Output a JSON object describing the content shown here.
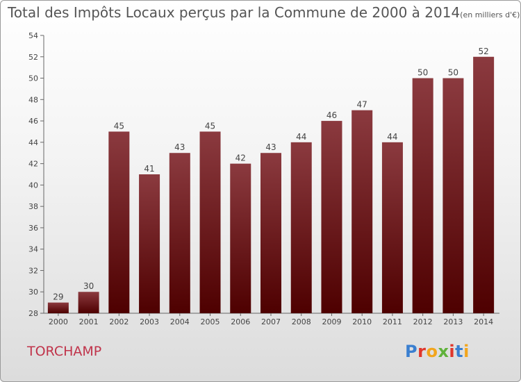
{
  "title": "Total des Impôts Locaux perçus par la Commune de 2000 à 2014",
  "unit": "(en milliers d'€)",
  "commune": "TORCHAMP",
  "logo": "Proxiti",
  "colors": {
    "bar_top": "#8b3a3f",
    "bar_bottom": "#4e0000",
    "commune": "#c0334a"
  },
  "chart_data": {
    "type": "bar",
    "title": "Total des Impôts Locaux perçus par la Commune de 2000 à 2014",
    "categories": [
      "2000",
      "2001",
      "2002",
      "2003",
      "2004",
      "2005",
      "2006",
      "2007",
      "2008",
      "2009",
      "2010",
      "2011",
      "2012",
      "2013",
      "2014"
    ],
    "values": [
      29,
      30,
      45,
      41,
      43,
      45,
      42,
      43,
      44,
      46,
      47,
      44,
      50,
      50,
      52
    ],
    "ylim": [
      28,
      54
    ],
    "yticks": [
      28,
      30,
      32,
      34,
      36,
      38,
      40,
      42,
      44,
      46,
      48,
      50,
      52,
      54
    ],
    "grid": false,
    "data_labels": true
  }
}
